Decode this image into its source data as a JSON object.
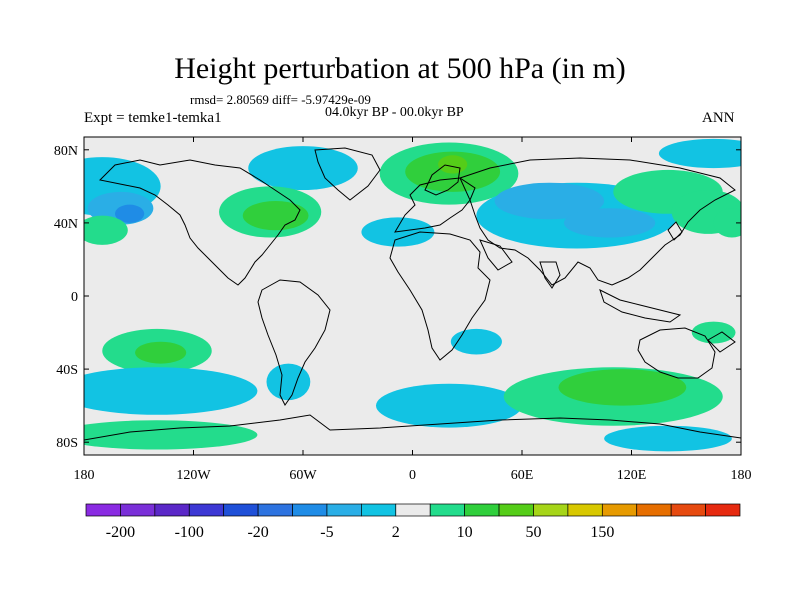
{
  "title": "Height perturbation at 500 hPa (in m)",
  "stats_text": "rmsd= 2.80569 diff= -5.97429e-09",
  "period_text": "04.0kyr BP - 00.0kyr BP",
  "experiment_text": "Expt = temke1-temka1",
  "season": "ANN",
  "lat_ticks": [
    {
      "lat": 80,
      "label": "80N"
    },
    {
      "lat": 40,
      "label": "40N"
    },
    {
      "lat": 0,
      "label": "0"
    },
    {
      "lat": -40,
      "label": "40S"
    },
    {
      "lat": -80,
      "label": "80S"
    }
  ],
  "lon_ticks": [
    {
      "lon": -180,
      "label": "180"
    },
    {
      "lon": -120,
      "label": "120W"
    },
    {
      "lon": -60,
      "label": "60W"
    },
    {
      "lon": 0,
      "label": "0"
    },
    {
      "lon": 60,
      "label": "60E"
    },
    {
      "lon": 120,
      "label": "120E"
    },
    {
      "lon": 180,
      "label": "180"
    }
  ],
  "colorbar": {
    "colors": [
      "#8a2be2",
      "#7a2fd8",
      "#5b28c8",
      "#3d38d4",
      "#1f50d8",
      "#2d73e0",
      "#1f8ce6",
      "#2aaee6",
      "#12c3e3",
      "#ebebeb",
      "#23dc8c",
      "#30cf3c",
      "#55cd18",
      "#a6d518",
      "#d8c800",
      "#e69a00",
      "#e66e00",
      "#e64a10",
      "#e62a10"
    ],
    "labels": [
      {
        "after": 1,
        "text": "-200"
      },
      {
        "after": 3,
        "text": "-100"
      },
      {
        "after": 5,
        "text": "-20"
      },
      {
        "after": 7,
        "text": "-5"
      },
      {
        "after": 9,
        "text": "2"
      },
      {
        "after": 11,
        "text": "10"
      },
      {
        "after": 13,
        "text": "50"
      },
      {
        "after": 15,
        "text": "150"
      }
    ]
  },
  "anomaly_colors": {
    "ocean_background": "#ebebeb",
    "light_negative": "#12c3e3",
    "mid_negative": "#2aaee6",
    "strong_negative": "#1f8ce6",
    "light_positive": "#23dc8c",
    "mid_positive": "#30cf3c",
    "strong_positive": "#55cd18"
  },
  "anomaly_regions": [
    {
      "lon": -170,
      "lat": 60,
      "rlon": 32,
      "rlat": 16,
      "sign": "neg",
      "level": 1
    },
    {
      "lon": -160,
      "lat": 48,
      "rlon": 18,
      "rlat": 9,
      "sign": "neg",
      "level": 2
    },
    {
      "lon": -155,
      "lat": 45,
      "rlon": 8,
      "rlat": 5,
      "sign": "neg",
      "level": 3
    },
    {
      "lon": -60,
      "lat": 70,
      "rlon": 30,
      "rlat": 12,
      "sign": "neg",
      "level": 1
    },
    {
      "lon": -78,
      "lat": 46,
      "rlon": 28,
      "rlat": 14,
      "sign": "pos",
      "level": 1
    },
    {
      "lon": -75,
      "lat": 44,
      "rlon": 18,
      "rlat": 8,
      "sign": "pos",
      "level": 2
    },
    {
      "lon": 20,
      "lat": 67,
      "rlon": 38,
      "rlat": 17,
      "sign": "pos",
      "level": 1
    },
    {
      "lon": 22,
      "lat": 68,
      "rlon": 26,
      "rlat": 11,
      "sign": "pos",
      "level": 2
    },
    {
      "lon": 22,
      "lat": 72,
      "rlon": 8,
      "rlat": 5,
      "sign": "pos",
      "level": 3
    },
    {
      "lon": -8,
      "lat": 35,
      "rlon": 20,
      "rlat": 8,
      "sign": "neg",
      "level": 1
    },
    {
      "lon": 90,
      "lat": 44,
      "rlon": 55,
      "rlat": 18,
      "sign": "neg",
      "level": 1
    },
    {
      "lon": 75,
      "lat": 52,
      "rlon": 30,
      "rlat": 10,
      "sign": "neg",
      "level": 2
    },
    {
      "lon": 108,
      "lat": 40,
      "rlon": 25,
      "rlat": 8,
      "sign": "neg",
      "level": 2
    },
    {
      "lon": 140,
      "lat": 57,
      "rlon": 30,
      "rlat": 12,
      "sign": "pos",
      "level": 1
    },
    {
      "lon": 162,
      "lat": 46,
      "rlon": 20,
      "rlat": 12,
      "sign": "pos",
      "level": 1
    },
    {
      "lon": -170,
      "lat": 36,
      "rlon": 14,
      "rlat": 8,
      "sign": "pos",
      "level": 1
    },
    {
      "lon": 175,
      "lat": 40,
      "rlon": 10,
      "rlat": 8,
      "sign": "pos",
      "level": 1
    },
    {
      "lon": 165,
      "lat": 78,
      "rlon": 30,
      "rlat": 8,
      "sign": "neg",
      "level": 1
    },
    {
      "lon": 35,
      "lat": -25,
      "rlon": 14,
      "rlat": 7,
      "sign": "neg",
      "level": 1
    },
    {
      "lon": 165,
      "lat": -20,
      "rlon": 12,
      "rlat": 6,
      "sign": "pos",
      "level": 1
    },
    {
      "lon": -140,
      "lat": -30,
      "rlon": 30,
      "rlat": 12,
      "sign": "pos",
      "level": 1
    },
    {
      "lon": -138,
      "lat": -31,
      "rlon": 14,
      "rlat": 6,
      "sign": "pos",
      "level": 2
    },
    {
      "lon": -140,
      "lat": -52,
      "rlon": 55,
      "rlat": 13,
      "sign": "neg",
      "level": 1
    },
    {
      "lon": -68,
      "lat": -47,
      "rlon": 12,
      "rlat": 10,
      "sign": "neg",
      "level": 1
    },
    {
      "lon": -140,
      "lat": -76,
      "rlon": 55,
      "rlat": 8,
      "sign": "pos",
      "level": 1
    },
    {
      "lon": 20,
      "lat": -60,
      "rlon": 40,
      "rlat": 12,
      "sign": "neg",
      "level": 1
    },
    {
      "lon": 110,
      "lat": -55,
      "rlon": 60,
      "rlat": 16,
      "sign": "pos",
      "level": 1
    },
    {
      "lon": 115,
      "lat": -50,
      "rlon": 35,
      "rlat": 10,
      "sign": "pos",
      "level": 2
    },
    {
      "lon": 140,
      "lat": -78,
      "rlon": 35,
      "rlat": 7,
      "sign": "neg",
      "level": 1
    }
  ]
}
